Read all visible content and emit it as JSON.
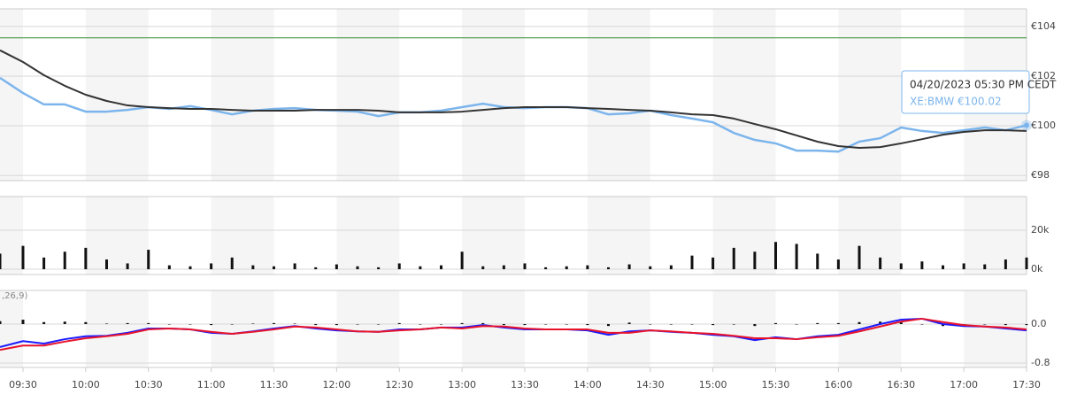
{
  "chart_data": [
    {
      "type": "line",
      "x": [
        "09:19",
        "09:30",
        "09:40",
        "09:50",
        "10:00",
        "10:10",
        "10:20",
        "10:30",
        "10:40",
        "10:50",
        "11:00",
        "11:10",
        "11:20",
        "11:30",
        "11:40",
        "11:50",
        "12:00",
        "12:10",
        "12:20",
        "12:30",
        "12:40",
        "12:50",
        "13:00",
        "13:10",
        "13:20",
        "13:30",
        "13:40",
        "13:50",
        "14:00",
        "14:10",
        "14:20",
        "14:30",
        "14:40",
        "14:50",
        "15:00",
        "15:10",
        "15:20",
        "15:30",
        "15:40",
        "15:50",
        "16:00",
        "16:10",
        "16:20",
        "16:30",
        "16:40",
        "16:50",
        "17:00",
        "17:10",
        "17:20",
        "17:30"
      ],
      "xlim": [
        "09:19",
        "17:30"
      ],
      "ylim": [
        97.79,
        104.71
      ],
      "yticks": [
        {
          "value": 98,
          "label": "€98"
        },
        {
          "value": 100,
          "label": "€100"
        },
        {
          "value": 102,
          "label": "€102"
        },
        {
          "value": 104,
          "label": "€104"
        }
      ],
      "grid": true,
      "reference_line": {
        "value": 103.54,
        "color": "#2e8b2e"
      },
      "series": [
        {
          "color": "#7cb5ec",
          "values": [
            101.93,
            101.32,
            100.86,
            100.86,
            100.57,
            100.57,
            100.64,
            100.75,
            100.68,
            100.79,
            100.64,
            100.46,
            100.61,
            100.68,
            100.71,
            100.64,
            100.61,
            100.57,
            100.39,
            100.54,
            100.54,
            100.61,
            100.75,
            100.89,
            100.75,
            100.71,
            100.75,
            100.75,
            100.71,
            100.46,
            100.5,
            100.61,
            100.43,
            100.29,
            100.14,
            99.71,
            99.43,
            99.29,
            99.0,
            99.0,
            98.96,
            99.36,
            99.5,
            99.93,
            99.79,
            99.71,
            99.82,
            99.93,
            99.82,
            100.02
          ]
        },
        {
          "color": "#333333",
          "values": [
            103.04,
            102.57,
            102.04,
            101.61,
            101.25,
            101.0,
            100.82,
            100.75,
            100.71,
            100.68,
            100.68,
            100.64,
            100.61,
            100.61,
            100.61,
            100.64,
            100.64,
            100.64,
            100.61,
            100.54,
            100.54,
            100.54,
            100.57,
            100.64,
            100.71,
            100.75,
            100.75,
            100.75,
            100.71,
            100.68,
            100.64,
            100.61,
            100.54,
            100.46,
            100.43,
            100.29,
            100.07,
            99.86,
            99.61,
            99.36,
            99.18,
            99.11,
            99.14,
            99.29,
            99.46,
            99.64,
            99.75,
            99.82,
            99.82,
            99.79
          ]
        }
      ],
      "tooltip": {
        "date": "04/20/2023 05:30 PM CEDT",
        "symbol": "XE:BMW",
        "value_label": "€100.02"
      }
    },
    {
      "type": "bar",
      "x": [
        "09:19",
        "09:30",
        "09:40",
        "09:50",
        "10:00",
        "10:10",
        "10:20",
        "10:30",
        "10:40",
        "10:50",
        "11:00",
        "11:10",
        "11:20",
        "11:30",
        "11:40",
        "11:50",
        "12:00",
        "12:10",
        "12:20",
        "12:30",
        "12:40",
        "12:50",
        "13:00",
        "13:10",
        "13:20",
        "13:30",
        "13:40",
        "13:50",
        "14:00",
        "14:10",
        "14:20",
        "14:30",
        "14:40",
        "14:50",
        "15:00",
        "15:10",
        "15:20",
        "15:30",
        "15:40",
        "15:50",
        "16:00",
        "16:10",
        "16:20",
        "16:30",
        "16:40",
        "16:50",
        "17:00",
        "17:10",
        "17:20",
        "17:30"
      ],
      "xlim": [
        "09:19",
        "17:30"
      ],
      "ylim": [
        -2700,
        37300
      ],
      "yticks": [
        {
          "value": 0,
          "label": "0k"
        },
        {
          "value": 20000,
          "label": "20k"
        }
      ],
      "grid": true,
      "color": "#111111",
      "values": [
        8000,
        12000,
        6000,
        9000,
        11000,
        5000,
        3000,
        10000,
        2000,
        1500,
        3000,
        6000,
        2000,
        1500,
        3000,
        1000,
        2500,
        1500,
        1000,
        3000,
        1500,
        2000,
        9000,
        1500,
        2000,
        3000,
        1000,
        1500,
        2000,
        1000,
        2500,
        1500,
        2000,
        7000,
        6000,
        11000,
        9000,
        14000,
        13000,
        8000,
        5000,
        12000,
        6000,
        3000,
        4000,
        2000,
        3000,
        2500,
        5000,
        6000
      ]
    },
    {
      "type": "line",
      "indicator_label": ",26,9)",
      "x": [
        "09:19",
        "09:30",
        "09:40",
        "09:50",
        "10:00",
        "10:10",
        "10:20",
        "10:30",
        "10:40",
        "10:50",
        "11:00",
        "11:10",
        "11:20",
        "11:30",
        "11:40",
        "11:50",
        "12:00",
        "12:10",
        "12:20",
        "12:30",
        "12:40",
        "12:50",
        "13:00",
        "13:10",
        "13:20",
        "13:30",
        "13:40",
        "13:50",
        "14:00",
        "14:10",
        "14:20",
        "14:30",
        "14:40",
        "14:50",
        "15:00",
        "15:10",
        "15:20",
        "15:30",
        "15:40",
        "15:50",
        "16:00",
        "16:10",
        "16:20",
        "16:30",
        "16:40",
        "16:50",
        "17:00",
        "17:10",
        "17:20",
        "17:30"
      ],
      "xlim": [
        "09:19",
        "17:30"
      ],
      "xticks": [
        "09:30",
        "10:00",
        "10:30",
        "11:00",
        "11:30",
        "12:00",
        "12:30",
        "13:00",
        "13:30",
        "14:00",
        "14:30",
        "15:00",
        "15:30",
        "16:00",
        "16:30",
        "17:00",
        "17:30"
      ],
      "ylim": [
        -0.89,
        0.69
      ],
      "yticks": [
        {
          "value": -0.8,
          "label": "-0.8"
        },
        {
          "value": 0,
          "label": "0.0"
        }
      ],
      "grid": true,
      "series": [
        {
          "type": "bar",
          "color": "#111111",
          "values": [
            0.06,
            0.09,
            0.04,
            0.05,
            0.04,
            0.01,
            0.02,
            0.02,
            0,
            0,
            -0.02,
            0,
            0.01,
            0.02,
            0.01,
            -0.02,
            -0.02,
            0,
            0,
            0.02,
            0,
            0,
            0.02,
            0.02,
            -0.02,
            -0.02,
            0,
            0,
            -0.02,
            -0.04,
            0.03,
            0,
            -0.01,
            0,
            -0.02,
            -0.01,
            -0.04,
            0.02,
            0,
            0.02,
            0.02,
            0.04,
            0.05,
            0.04,
            0,
            -0.04,
            -0.02,
            0,
            -0.02,
            -0.02
          ]
        },
        {
          "type": "line",
          "color": "#1a1aff",
          "values": [
            -0.47,
            -0.35,
            -0.4,
            -0.31,
            -0.25,
            -0.24,
            -0.18,
            -0.09,
            -0.09,
            -0.11,
            -0.18,
            -0.2,
            -0.15,
            -0.09,
            -0.04,
            -0.09,
            -0.13,
            -0.15,
            -0.16,
            -0.11,
            -0.11,
            -0.07,
            -0.07,
            -0.02,
            -0.07,
            -0.11,
            -0.11,
            -0.11,
            -0.13,
            -0.22,
            -0.15,
            -0.13,
            -0.16,
            -0.18,
            -0.22,
            -0.25,
            -0.33,
            -0.27,
            -0.31,
            -0.25,
            -0.22,
            -0.11,
            0,
            0.09,
            0.11,
            0,
            -0.04,
            -0.05,
            -0.09,
            -0.13
          ]
        },
        {
          "type": "line",
          "color": "#e8132b",
          "values": [
            -0.53,
            -0.44,
            -0.44,
            -0.36,
            -0.29,
            -0.25,
            -0.2,
            -0.11,
            -0.09,
            -0.11,
            -0.16,
            -0.2,
            -0.16,
            -0.11,
            -0.05,
            -0.07,
            -0.11,
            -0.15,
            -0.16,
            -0.13,
            -0.11,
            -0.07,
            -0.09,
            -0.04,
            -0.05,
            -0.09,
            -0.11,
            -0.11,
            -0.11,
            -0.18,
            -0.18,
            -0.13,
            -0.15,
            -0.18,
            -0.2,
            -0.24,
            -0.29,
            -0.29,
            -0.31,
            -0.27,
            -0.24,
            -0.15,
            -0.05,
            0.05,
            0.11,
            0.04,
            -0.02,
            -0.05,
            -0.07,
            -0.11
          ]
        }
      ]
    }
  ]
}
